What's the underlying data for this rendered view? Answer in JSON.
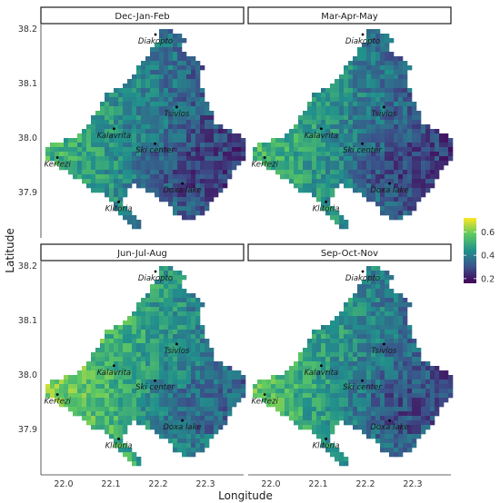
{
  "axes": {
    "xlabel": "Longitude",
    "ylabel": "Latitude",
    "x_ticks": [
      "22.0",
      "22.1",
      "22.2",
      "22.3"
    ],
    "y_ticks": [
      "38.2",
      "38.1",
      "38.0",
      "37.9"
    ],
    "xlim": [
      21.955,
      22.385
    ],
    "ylim": [
      37.83,
      38.215
    ]
  },
  "panels": [
    {
      "title": "Dec-Jan-Feb",
      "mean": 0.36
    },
    {
      "title": "Mar-Apr-May",
      "mean": 0.37
    },
    {
      "title": "Jun-Jul-Aug",
      "mean": 0.44
    },
    {
      "title": "Sep-Oct-Nov",
      "mean": 0.39
    }
  ],
  "places": [
    {
      "name": "Diakopto",
      "lon": 22.198,
      "lat": 38.197
    },
    {
      "name": "Tsivlos",
      "lon": 22.243,
      "lat": 38.066
    },
    {
      "name": "Kalavrita",
      "lon": 22.11,
      "lat": 38.027
    },
    {
      "name": "Ski center",
      "lon": 22.197,
      "lat": 38.0
    },
    {
      "name": "Kertezi",
      "lon": 21.99,
      "lat": 37.975
    },
    {
      "name": "Doxa lake",
      "lon": 22.255,
      "lat": 37.928
    },
    {
      "name": "Klitoria",
      "lon": 22.12,
      "lat": 37.895
    }
  ],
  "legend": {
    "ticks": [
      "0.6",
      "0.4",
      "0.2"
    ],
    "tick_values": [
      0.6,
      0.4,
      0.2
    ],
    "range": [
      0.16,
      0.72
    ],
    "colors": [
      "#440154",
      "#3b528b",
      "#21918c",
      "#5ec962",
      "#fde725"
    ]
  },
  "colors": {
    "panel_bg": "#ffffff",
    "strip_border": "#1a1a1a",
    "axis_line": "#333333"
  }
}
